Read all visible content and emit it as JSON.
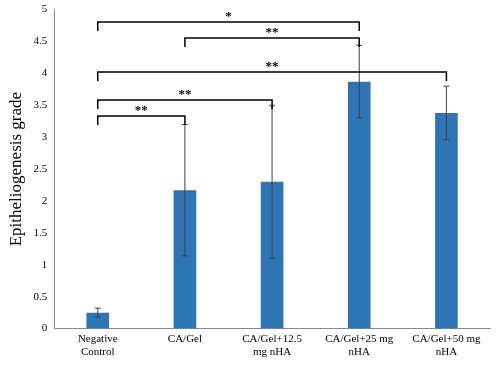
{
  "chart_data": {
    "type": "bar",
    "y_label": "Epitheliogenesis grade",
    "categories": [
      "Negative Control",
      "CA/Gel",
      "CA/Gel+12.5 mg nHA",
      "CA/Gel+25 mg nHA",
      "CA/Gel+50 mg nHA"
    ],
    "values": [
      0.25,
      2.17,
      2.3,
      3.87,
      3.38
    ],
    "errors": [
      0.07,
      1.03,
      1.2,
      0.57,
      0.42
    ],
    "color": "#2e75b6",
    "ylim": [
      0,
      5
    ],
    "yticks": [
      0,
      0.5,
      1,
      1.5,
      2,
      2.5,
      3,
      3.5,
      4,
      4.5,
      5
    ],
    "grid": false,
    "annotations": [
      {
        "from": "Negative Control",
        "to": "CA/Gel+25 mg nHA",
        "label": "*"
      },
      {
        "from": "CA/Gel",
        "to": "CA/Gel+25 mg nHA",
        "label": "**"
      },
      {
        "from": "Negative Control",
        "to": "CA/Gel+50 mg nHA",
        "label": "**"
      },
      {
        "from": "Negative Control",
        "to": "CA/Gel+12.5 mg nHA",
        "label": "**"
      },
      {
        "from": "Negative Control",
        "to": "CA/Gel",
        "label": "**"
      }
    ]
  }
}
